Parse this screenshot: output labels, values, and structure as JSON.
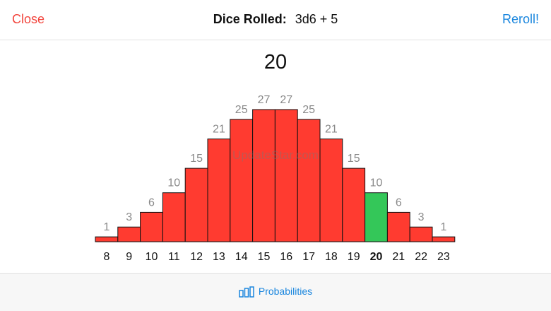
{
  "header": {
    "close_label": "Close",
    "title_label": "Dice Rolled:",
    "dice_expression": "3d6 + 5",
    "reroll_label": "Reroll!"
  },
  "result": "20",
  "watermark": "UpdateStar.com",
  "footer": {
    "probabilities_label": "Probabilities",
    "icon": "bar-chart-icon"
  },
  "colors": {
    "bar": "#ff3b30",
    "highlight": "#34c759",
    "close": "#f2453d",
    "accent": "#1a86de"
  },
  "chart_data": {
    "type": "bar",
    "categories": [
      "8",
      "9",
      "10",
      "11",
      "12",
      "13",
      "14",
      "15",
      "16",
      "17",
      "18",
      "19",
      "20",
      "21",
      "22",
      "23"
    ],
    "values": [
      1,
      3,
      6,
      10,
      15,
      21,
      25,
      27,
      27,
      25,
      21,
      15,
      10,
      6,
      3,
      1
    ],
    "highlight_category": "20",
    "ylim": [
      0,
      27
    ],
    "title": "",
    "xlabel": "",
    "ylabel": ""
  }
}
